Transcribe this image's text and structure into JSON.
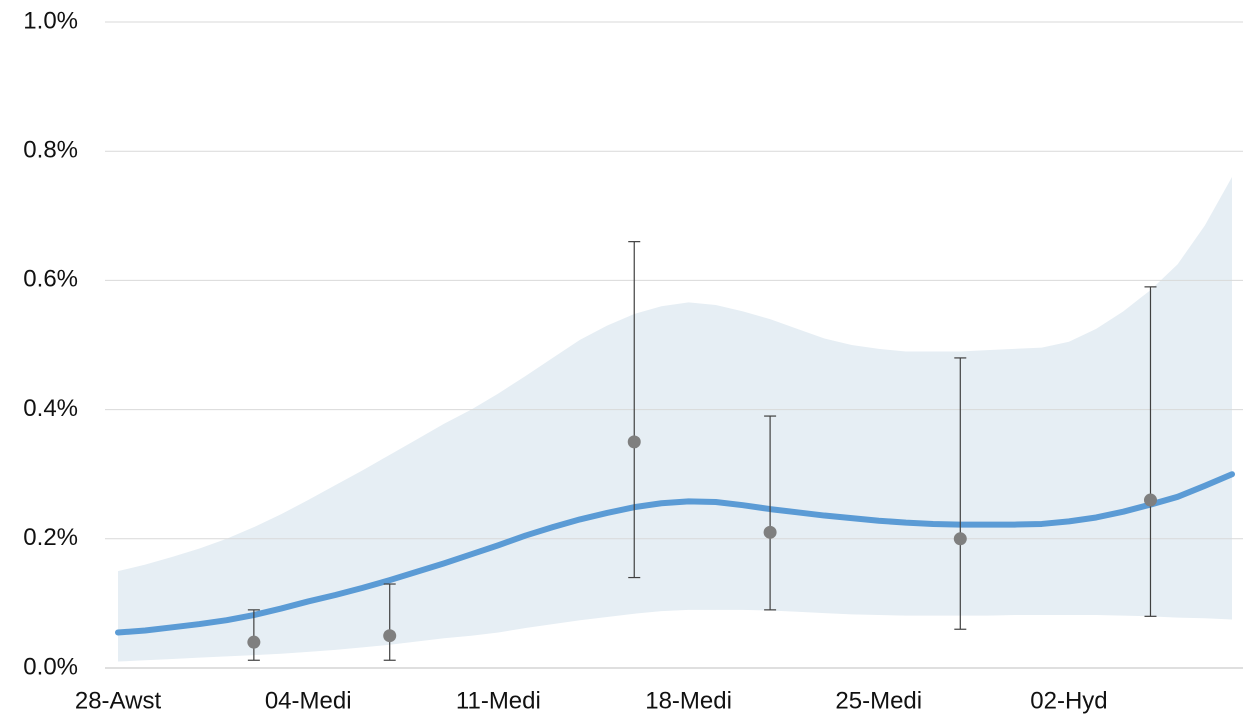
{
  "chart_data": {
    "type": "line",
    "categories": [
      "28-Awst",
      null,
      null,
      null,
      null,
      null,
      null,
      "04-Medi",
      null,
      null,
      null,
      null,
      null,
      null,
      "11-Medi",
      null,
      null,
      null,
      null,
      null,
      null,
      "18-Medi",
      null,
      null,
      null,
      null,
      null,
      null,
      "25-Medi",
      null,
      null,
      null,
      null,
      null,
      null,
      "02-Hyd",
      null,
      null,
      null,
      null,
      null,
      null
    ],
    "series": [
      {
        "color": "#5b9bd5",
        "values": [
          0.055,
          0.058,
          0.063,
          0.068,
          0.074,
          0.082,
          0.092,
          0.103,
          0.113,
          0.124,
          0.136,
          0.149,
          0.162,
          0.176,
          0.19,
          0.205,
          0.218,
          0.23,
          0.24,
          0.249,
          0.255,
          0.258,
          0.257,
          0.252,
          0.246,
          0.241,
          0.236,
          0.232,
          0.228,
          0.225,
          0.223,
          0.222,
          0.222,
          0.222,
          0.223,
          0.227,
          0.233,
          0.242,
          0.253,
          0.265,
          0.282,
          0.3
        ],
        "band_color": "#e6eef4",
        "lower": [
          0.01,
          0.012,
          0.014,
          0.016,
          0.018,
          0.02,
          0.022,
          0.025,
          0.028,
          0.032,
          0.036,
          0.041,
          0.046,
          0.05,
          0.055,
          0.062,
          0.068,
          0.074,
          0.079,
          0.084,
          0.088,
          0.09,
          0.09,
          0.09,
          0.089,
          0.087,
          0.085,
          0.083,
          0.082,
          0.081,
          0.081,
          0.081,
          0.081,
          0.082,
          0.082,
          0.082,
          0.082,
          0.081,
          0.08,
          0.078,
          0.077,
          0.075
        ],
        "upper": [
          0.15,
          0.16,
          0.172,
          0.185,
          0.2,
          0.218,
          0.238,
          0.26,
          0.283,
          0.306,
          0.33,
          0.354,
          0.378,
          0.4,
          0.425,
          0.452,
          0.48,
          0.508,
          0.53,
          0.548,
          0.56,
          0.566,
          0.562,
          0.552,
          0.54,
          0.525,
          0.51,
          0.5,
          0.494,
          0.49,
          0.49,
          0.49,
          0.492,
          0.494,
          0.496,
          0.505,
          0.525,
          0.552,
          0.585,
          0.625,
          0.685,
          0.76
        ]
      },
      {
        "color": "#7f7f7f",
        "values": [
          null,
          null,
          null,
          null,
          null,
          0.04,
          null,
          null,
          null,
          null,
          0.05,
          null,
          null,
          null,
          null,
          null,
          null,
          null,
          null,
          0.35,
          null,
          null,
          null,
          null,
          0.21,
          null,
          null,
          null,
          null,
          null,
          null,
          0.2,
          null,
          null,
          null,
          null,
          null,
          null,
          0.26,
          null,
          null,
          null
        ],
        "lower": [
          null,
          null,
          null,
          null,
          null,
          0.012,
          null,
          null,
          null,
          null,
          0.012,
          null,
          null,
          null,
          null,
          null,
          null,
          null,
          null,
          0.14,
          null,
          null,
          null,
          null,
          0.09,
          null,
          null,
          null,
          null,
          null,
          null,
          0.06,
          null,
          null,
          null,
          null,
          null,
          null,
          0.08,
          null,
          null,
          null
        ],
        "upper": [
          null,
          null,
          null,
          null,
          null,
          0.09,
          null,
          null,
          null,
          null,
          0.13,
          null,
          null,
          null,
          null,
          null,
          null,
          null,
          null,
          0.66,
          null,
          null,
          null,
          null,
          0.39,
          null,
          null,
          null,
          null,
          null,
          null,
          0.48,
          null,
          null,
          null,
          null,
          null,
          null,
          0.59,
          null,
          null,
          null
        ]
      }
    ],
    "ylim": [
      0,
      1.0
    ],
    "yticks": [
      {
        "value": 0,
        "label": "0.0%"
      },
      {
        "value": 0.2,
        "label": "0.2%"
      },
      {
        "value": 0.4,
        "label": "0.4%"
      },
      {
        "value": 0.6,
        "label": "0.6%"
      },
      {
        "value": 0.8,
        "label": "0.8%"
      },
      {
        "value": 1.0,
        "label": "1.0%"
      }
    ],
    "grid": true
  }
}
